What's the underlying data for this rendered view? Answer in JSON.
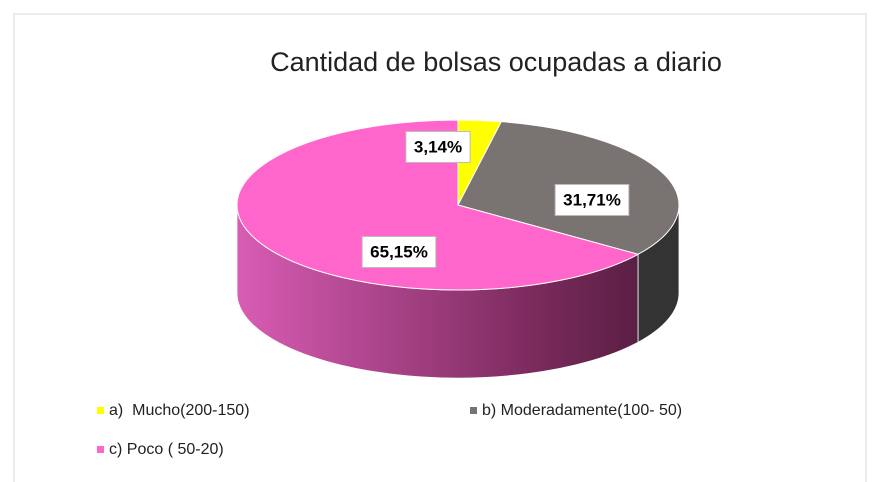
{
  "chart_data": {
    "type": "pie3d",
    "title": "Cantidad de bolsas ocupadas a diario",
    "categories": [
      "a)  Mucho(200-150)",
      "b) Moderadamente(100- 50)",
      "c) Poco ( 50-20)"
    ],
    "values": [
      3.14,
      31.71,
      65.15
    ],
    "value_labels": [
      "3,14%",
      "31,71%",
      "65,15%"
    ],
    "colors": [
      "#ffff00",
      "#797372",
      "#ff66cc"
    ],
    "legend": "bottom"
  }
}
